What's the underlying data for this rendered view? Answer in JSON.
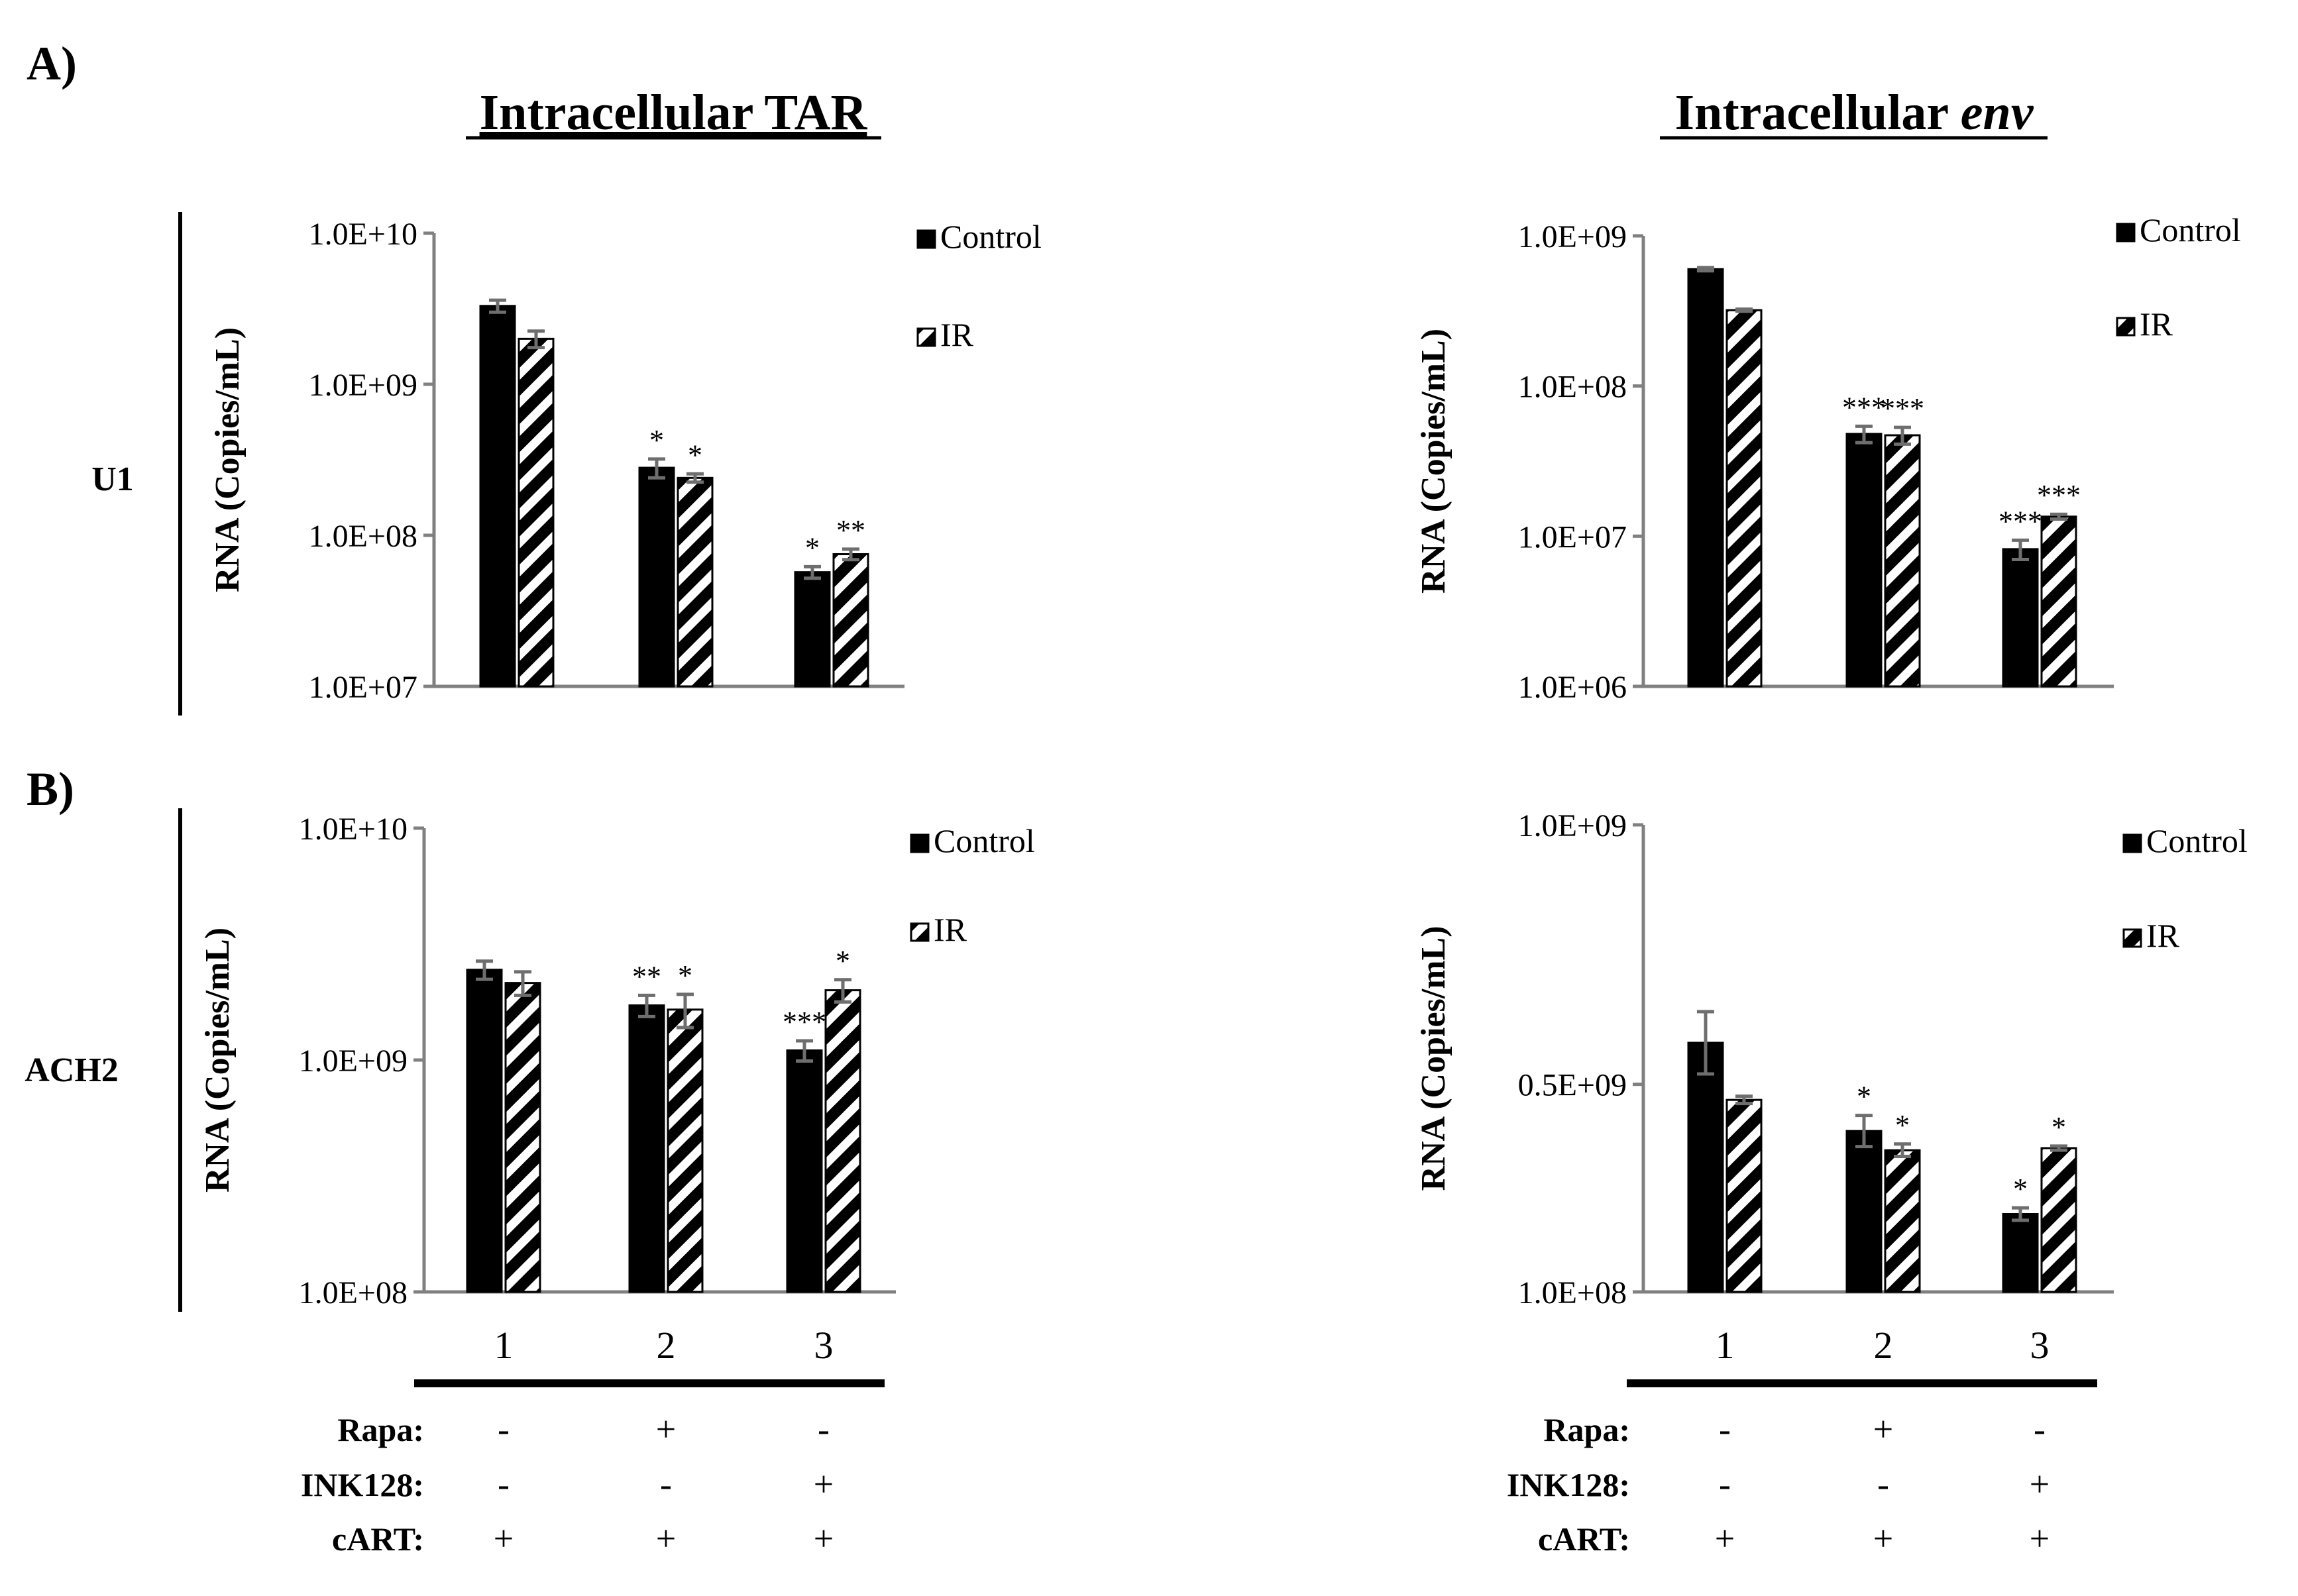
{
  "figure": {
    "panel_a_label": "A)",
    "panel_b_label": "B)",
    "col_titles": {
      "tar": "Intracellular TAR",
      "env_prefix": "Intracellular ",
      "env_italic": "env"
    },
    "row_labels": {
      "top": "U1",
      "bottom": "ACH2"
    },
    "ylabel": "RNA (Copies/mL)",
    "legend": {
      "control": "Control",
      "ir": "IR"
    },
    "conditions": {
      "numbers": [
        "1",
        "2",
        "3"
      ],
      "rows": [
        {
          "label": "Rapa:",
          "values": [
            "-",
            "+",
            "-"
          ]
        },
        {
          "label": "INK128:",
          "values": [
            "-",
            "-",
            "+"
          ]
        },
        {
          "label": "cART:",
          "values": [
            "+",
            "+",
            "+"
          ]
        }
      ]
    }
  },
  "colors": {
    "bar": "#000000",
    "axis": "#808080",
    "error": "#6e6e6e",
    "text": "#000000"
  },
  "chart_data": [
    {
      "id": "u1_tar",
      "type": "bar",
      "title": "Intracellular TAR",
      "row": "U1",
      "yscale": "log",
      "ylim": [
        10000000.0,
        10000000000.0
      ],
      "yticks": [
        10000000.0,
        100000000.0,
        1000000000.0,
        10000000000.0
      ],
      "ytick_labels": [
        "1.0E+07",
        "1.0E+08",
        "1.0E+09",
        "1.0E+10"
      ],
      "ylabel": "RNA (Copies/mL)",
      "categories": [
        "1",
        "2",
        "3"
      ],
      "series": [
        {
          "name": "Control",
          "values": [
            3300000000.0,
            280000000.0,
            57000000.0
          ],
          "errors": [
            300000000.0,
            40000000.0,
            5000000.0
          ],
          "sig": [
            "",
            "*",
            "*"
          ]
        },
        {
          "name": "IR",
          "values": [
            2000000000.0,
            240000000.0,
            75000000.0
          ],
          "errors": [
            250000000.0,
            15000000.0,
            6000000.0
          ],
          "sig": [
            "",
            "*",
            "**"
          ]
        }
      ]
    },
    {
      "id": "u1_env",
      "type": "bar",
      "title": "Intracellular env",
      "row": "U1",
      "yscale": "log",
      "ylim": [
        1000000.0,
        1000000000.0
      ],
      "yticks": [
        1000000.0,
        10000000.0,
        100000000.0,
        1000000000.0
      ],
      "ytick_labels": [
        "1.0E+06",
        "1.0E+07",
        "1.0E+08",
        "1.0E+09"
      ],
      "ylabel": "RNA (Copies/mL)",
      "categories": [
        "1",
        "2",
        "3"
      ],
      "series": [
        {
          "name": "Control",
          "values": [
            600000000.0,
            48000000.0,
            8200000.0
          ],
          "errors": [
            15000000.0,
            6000000.0,
            1200000.0
          ],
          "sig": [
            "",
            "***",
            "***"
          ]
        },
        {
          "name": "IR",
          "values": [
            320000000.0,
            47000000.0,
            13500000.0
          ],
          "errors": [
            5000000.0,
            6000000.0,
            500000.0
          ],
          "sig": [
            "",
            "***",
            "***"
          ]
        }
      ]
    },
    {
      "id": "ach2_tar",
      "type": "bar",
      "title": "Intracellular TAR",
      "row": "ACH2",
      "yscale": "log",
      "ylim": [
        100000000.0,
        10000000000.0
      ],
      "yticks": [
        100000000.0,
        1000000000.0,
        10000000000.0
      ],
      "ytick_labels": [
        "1.0E+08",
        "1.0E+09",
        "1.0E+10"
      ],
      "ylabel": "RNA (Copies/mL)",
      "categories": [
        "1",
        "2",
        "3"
      ],
      "series": [
        {
          "name": "Control",
          "values": [
            2450000000.0,
            1720000000.0,
            1100000000.0
          ],
          "errors": [
            220000000.0,
            180000000.0,
            110000000.0
          ],
          "sig": [
            "",
            "**",
            "***"
          ]
        },
        {
          "name": "IR",
          "values": [
            2150000000.0,
            1650000000.0,
            2000000000.0
          ],
          "errors": [
            250000000.0,
            270000000.0,
            220000000.0
          ],
          "sig": [
            "",
            "*",
            "*"
          ]
        }
      ]
    },
    {
      "id": "ach2_env",
      "type": "bar",
      "title": "Intracellular env",
      "row": "ACH2",
      "yscale": "linear",
      "ylim": [
        100000000.0,
        1000000000.0
      ],
      "yticks": [
        100000000.0,
        500000000.0,
        1000000000.0
      ],
      "ytick_labels": [
        "1.0E+08",
        "0.5E+09",
        "1.0E+09"
      ],
      "ylabel": "RNA (Copies/mL)",
      "categories": [
        "1",
        "2",
        "3"
      ],
      "series": [
        {
          "name": "Control",
          "values": [
            580000000.0,
            410000000.0,
            250000000.0
          ],
          "errors": [
            60000000.0,
            30000000.0,
            12000000.0
          ],
          "sig": [
            "",
            "*",
            "*"
          ]
        },
        {
          "name": "IR",
          "values": [
            470000000.0,
            373000000.0,
            377000000.0
          ],
          "errors": [
            7000000.0,
            12000000.0,
            4000000.0
          ],
          "sig": [
            "",
            "*",
            "*"
          ]
        }
      ]
    }
  ]
}
